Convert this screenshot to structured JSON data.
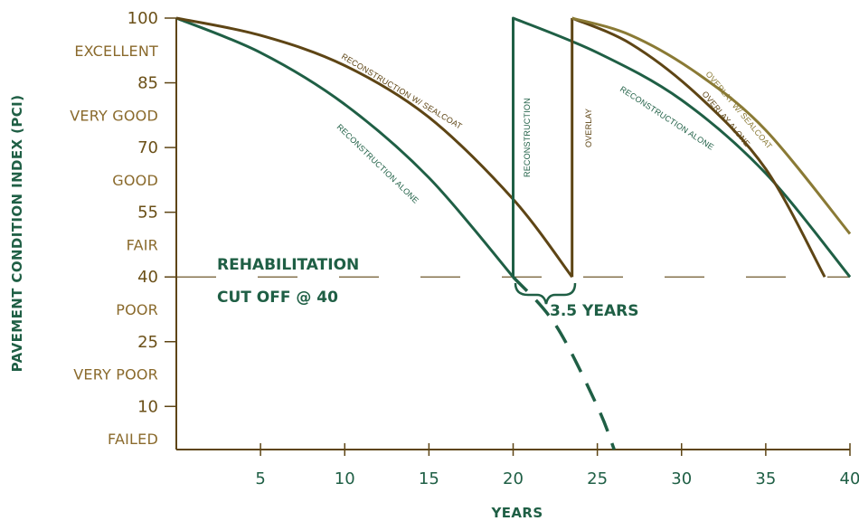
{
  "chart_data": {
    "type": "line",
    "title": "",
    "xlabel": "YEARS",
    "ylabel": "PAVEMENT CONDITION INDEX (PCI)",
    "xlim": [
      0,
      40
    ],
    "ylim": [
      0,
      100
    ],
    "x_ticks": [
      "5",
      "10",
      "15",
      "20",
      "25",
      "30",
      "35",
      "40"
    ],
    "y_ticks": [
      "100",
      "85",
      "70",
      "55",
      "40",
      "25",
      "10"
    ],
    "condition_bands": [
      "EXCELLENT",
      "VERY GOOD",
      "GOOD",
      "FAIR",
      "POOR",
      "VERY POOR",
      "FAILED"
    ],
    "condition_band_y": [
      92.5,
      77.5,
      62.5,
      47.5,
      32.5,
      17.5,
      2.5
    ],
    "cutoff": {
      "pci": 40,
      "line1": "REHABILITATION",
      "line2": "CUT   OFF   @  40"
    },
    "interval_label": "3.5 YEARS",
    "interval_x": [
      20,
      23.5
    ],
    "series": [
      {
        "name": "RECONSTRUCTION ALONE",
        "color": "#1f5f45",
        "x": [
          0,
          5,
          10,
          15,
          20
        ],
        "y": [
          100,
          92,
          80,
          63,
          40
        ]
      },
      {
        "name": "RECONSTRUCTION W/ SEALCOAT",
        "color": "#5e4515",
        "x": [
          0,
          5,
          10,
          15,
          20,
          23.5
        ],
        "y": [
          100,
          96,
          89,
          77,
          58,
          40
        ]
      },
      {
        "name": "RECONSTRUCTION",
        "color": "#1f5f45",
        "x": [
          20,
          20,
          25,
          30,
          35,
          40
        ],
        "y": [
          40,
          100,
          92,
          81,
          64,
          40
        ]
      },
      {
        "name": "OVERLAY",
        "color": "#5e4515",
        "x": [
          23.5,
          23.5
        ],
        "y": [
          40,
          100
        ]
      },
      {
        "name": "OVERLAY ALONE",
        "color": "#5e4515",
        "x": [
          23.5,
          27,
          31,
          35,
          38.5
        ],
        "y": [
          100,
          94,
          82,
          65,
          40
        ]
      },
      {
        "name": "OVERLAY W/ SEALCOAT",
        "color": "#8a7a35",
        "x": [
          23.5,
          27,
          31,
          35,
          40
        ],
        "y": [
          100,
          96,
          87,
          74,
          50
        ]
      },
      {
        "name": "",
        "color": "#1f5f45",
        "dashed": true,
        "x": [
          20,
          22.5,
          25,
          26
        ],
        "y": [
          40,
          29,
          10,
          0
        ]
      }
    ]
  }
}
